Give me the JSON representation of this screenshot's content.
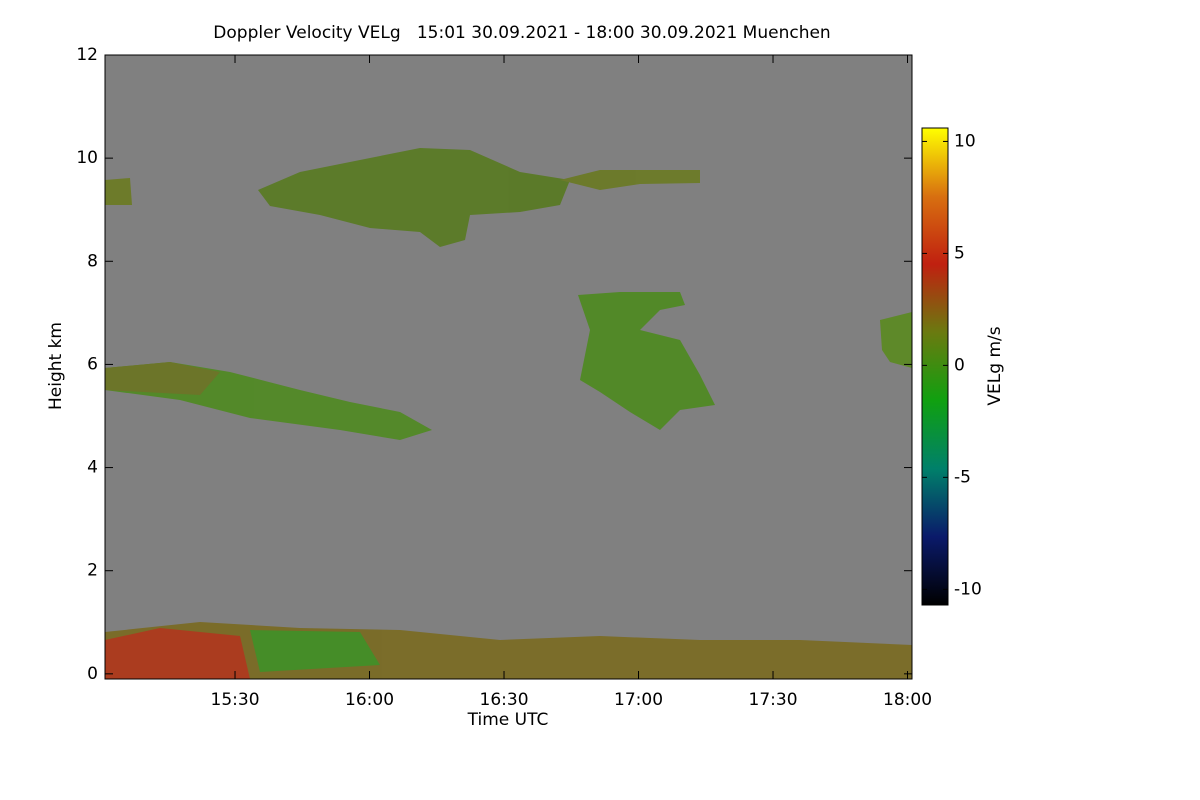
{
  "chart_data": {
    "type": "heatmap",
    "title": "Doppler Velocity VELg   15:01 30.09.2021 - 18:00 30.09.2021 Muenchen",
    "x_label": "Time UTC",
    "y_label": "Height km",
    "colorbar_label": "VELg m/s",
    "xlim": [
      901,
      1081
    ],
    "xticks": [
      {
        "value": 930,
        "label": "15:30"
      },
      {
        "value": 960,
        "label": "16:00"
      },
      {
        "value": 990,
        "label": "16:30"
      },
      {
        "value": 1020,
        "label": "17:00"
      },
      {
        "value": 1050,
        "label": "17:30"
      },
      {
        "value": 1080,
        "label": "18:00"
      }
    ],
    "ylim": [
      -0.1,
      12
    ],
    "yticks": [
      0,
      2,
      4,
      6,
      8,
      10,
      12
    ],
    "zlim": [
      -10.7,
      10.6
    ],
    "zticks": [
      -10,
      -5,
      0,
      5,
      10
    ],
    "colormap": [
      "#000000",
      "#0a1a6a",
      "#00806a",
      "#10a010",
      "#6a7a10",
      "#c02010",
      "#d87010",
      "#ffff00"
    ],
    "background": "#808080",
    "grid": false
  }
}
